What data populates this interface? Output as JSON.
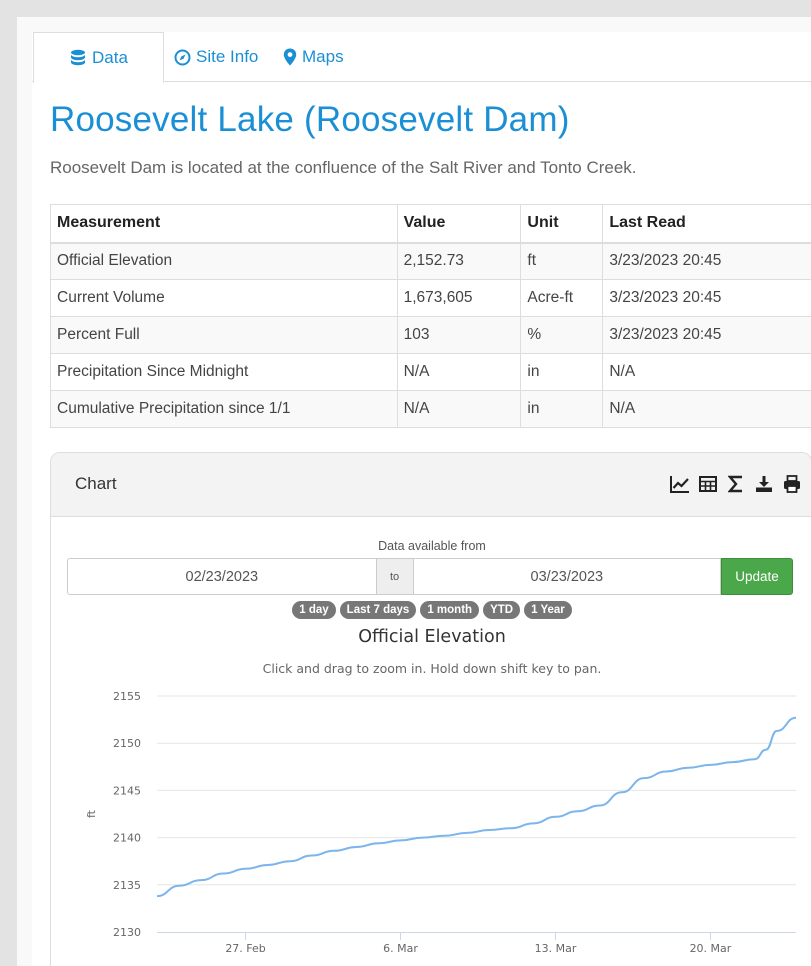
{
  "tabs": [
    {
      "label": "Data",
      "icon": "database-icon"
    },
    {
      "label": "Site Info",
      "icon": "compass-icon"
    },
    {
      "label": "Maps",
      "icon": "map-marker-icon"
    }
  ],
  "title": "Roosevelt Lake (Roosevelt Dam)",
  "description": "Roosevelt Dam is located at the confluence of the Salt River and Tonto Creek.",
  "table": {
    "headers": [
      "Measurement",
      "Value",
      "Unit",
      "Last Read"
    ],
    "rows": [
      [
        "Official Elevation",
        "2,152.73",
        "ft",
        "3/23/2023 20:45"
      ],
      [
        "Current Volume",
        "1,673,605",
        "Acre-ft",
        "3/23/2023 20:45"
      ],
      [
        "Percent Full",
        "103",
        "%",
        "3/23/2023 20:45"
      ],
      [
        "Precipitation Since Midnight",
        "N/A",
        "in",
        "N/A"
      ],
      [
        "Cumulative Precipitation since 1/1",
        "N/A",
        "in",
        "N/A"
      ]
    ]
  },
  "chart_panel": {
    "title": "Chart",
    "tools": [
      "line-chart-icon",
      "table-icon",
      "sigma-icon",
      "download-icon",
      "print-icon"
    ],
    "available_label": "Data available from",
    "from_date": "02/23/2023",
    "to_label": "to",
    "to_date": "03/23/2023",
    "update_label": "Update",
    "ranges": [
      "1 day",
      "Last 7 days",
      "1 month",
      "YTD",
      "1 Year"
    ]
  },
  "colors": {
    "accent": "#1a8fd6",
    "update": "#4aa84a",
    "line": "#7cb5ec"
  },
  "chart_data": {
    "type": "line",
    "title": "Official Elevation",
    "subtitle": "Click and drag to zoom in. Hold down shift key to pan.",
    "ylabel": "ft",
    "ylim": [
      2130,
      2155
    ],
    "yticks": [
      2130,
      2135,
      2140,
      2145,
      2150,
      2155
    ],
    "xlim": [
      "2023-02-23",
      "2023-03-23T20:45"
    ],
    "xticks": [
      {
        "x": "2023-02-27",
        "label": "27. Feb"
      },
      {
        "x": "2023-03-06",
        "label": "6. Mar"
      },
      {
        "x": "2023-03-13",
        "label": "13. Mar"
      },
      {
        "x": "2023-03-20",
        "label": "20. Mar"
      }
    ],
    "series": [
      {
        "x": [
          "2023-02-23",
          "2023-02-24",
          "2023-02-25",
          "2023-02-26",
          "2023-02-27",
          "2023-02-28",
          "2023-03-01",
          "2023-03-02",
          "2023-03-03",
          "2023-03-04",
          "2023-03-05",
          "2023-03-06",
          "2023-03-07",
          "2023-03-08",
          "2023-03-09",
          "2023-03-10",
          "2023-03-11",
          "2023-03-12",
          "2023-03-13",
          "2023-03-14",
          "2023-03-15",
          "2023-03-16",
          "2023-03-17",
          "2023-03-18",
          "2023-03-19",
          "2023-03-20",
          "2023-03-21",
          "2023-03-22",
          "2023-03-22T12:00",
          "2023-03-23",
          "2023-03-23T20:45"
        ],
        "values": [
          2133.8,
          2134.9,
          2135.5,
          2136.2,
          2136.7,
          2137.1,
          2137.5,
          2138.1,
          2138.6,
          2139.0,
          2139.4,
          2139.7,
          2140.0,
          2140.2,
          2140.5,
          2140.8,
          2141.0,
          2141.5,
          2142.2,
          2142.8,
          2143.4,
          2144.8,
          2146.3,
          2147.0,
          2147.4,
          2147.7,
          2148.0,
          2148.3,
          2149.3,
          2151.3,
          2152.7
        ]
      }
    ]
  }
}
